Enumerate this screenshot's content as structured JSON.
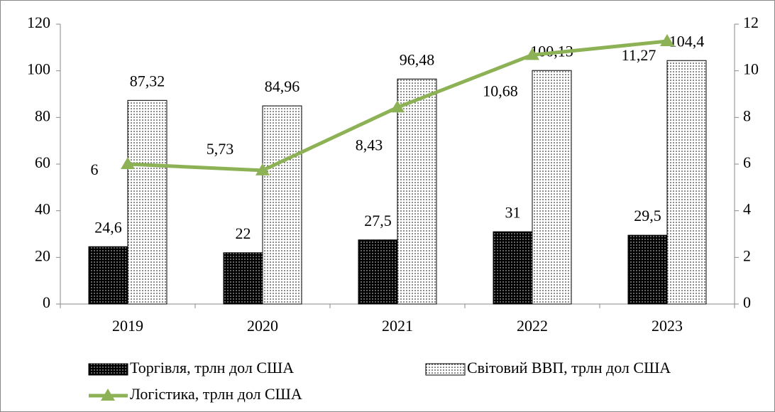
{
  "chart_data": {
    "type": "bar",
    "categories": [
      "2019",
      "2020",
      "2021",
      "2022",
      "2023"
    ],
    "series": [
      {
        "name": "Торгівля, трлн дол США",
        "color": "#000000",
        "type": "bar",
        "values": [
          24.6,
          22,
          27.5,
          31,
          29.5
        ],
        "value_labels": [
          "24,6",
          "22",
          "27,5",
          "31",
          "29,5"
        ]
      },
      {
        "name": "Світовий ВВП, трлн дол США",
        "color": "#ffffff",
        "type": "bar",
        "values": [
          87.32,
          84.96,
          96.48,
          100.13,
          104.4
        ],
        "value_labels": [
          "87,32",
          "84,96",
          "96,48",
          "100,13",
          "104,4"
        ]
      },
      {
        "name": "Логістика, трлн дол США",
        "color": "#8db255",
        "type": "line",
        "axis": "y2",
        "values": [
          6,
          5.73,
          8.43,
          10.68,
          11.27
        ],
        "value_labels": [
          "6",
          "5,73",
          "8,43",
          "10,68",
          "11,27"
        ]
      }
    ],
    "ylim": [
      0,
      120
    ],
    "yticks": [
      0,
      20,
      40,
      60,
      80,
      100,
      120
    ],
    "y2lim": [
      0,
      12
    ],
    "y2ticks": [
      0,
      2,
      4,
      6,
      8,
      10,
      12
    ],
    "grid": false,
    "legend": "bottom"
  }
}
